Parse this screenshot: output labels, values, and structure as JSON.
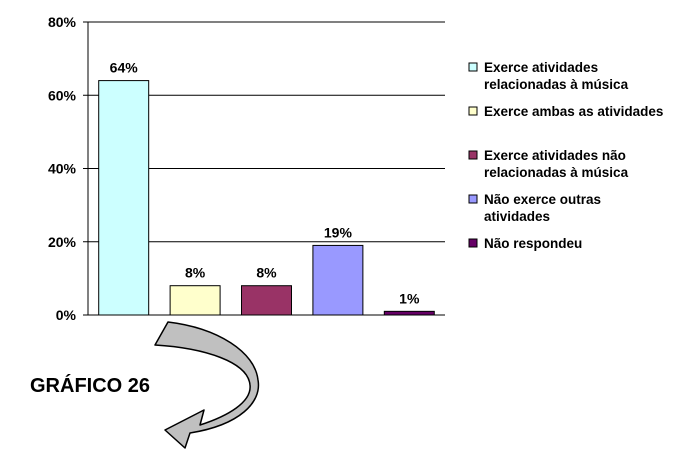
{
  "caption": "GRÁFICO 26",
  "chart_data": {
    "type": "bar",
    "categories": [
      "Exerce atividades relacionadas à música",
      "Exerce ambas as atividades",
      "Exerce atividades não relacionadas à música",
      "Não exerce outras atividades",
      "Não respondeu"
    ],
    "values": [
      64,
      8,
      8,
      19,
      1
    ],
    "data_labels": [
      "64%",
      "8%",
      "8%",
      "19%",
      "1%"
    ],
    "colors": [
      "#ccffff",
      "#ffffcc",
      "#993366",
      "#9999ff",
      "#660066"
    ],
    "ylim": [
      0,
      80
    ],
    "y_ticks": [
      "0%",
      "20%",
      "40%",
      "60%",
      "80%"
    ],
    "grid": true,
    "legend_position": "right",
    "legend": [
      {
        "lines": [
          "Exerce atividades",
          "relacionadas à música"
        ]
      },
      {
        "lines": [
          "Exerce ambas as atividades"
        ]
      },
      {
        "lines": [
          "Exerce atividades não",
          "relacionadas à música"
        ]
      },
      {
        "lines": [
          "Não exerce outras",
          "atividades"
        ]
      },
      {
        "lines": [
          "Não respondeu"
        ]
      }
    ]
  }
}
